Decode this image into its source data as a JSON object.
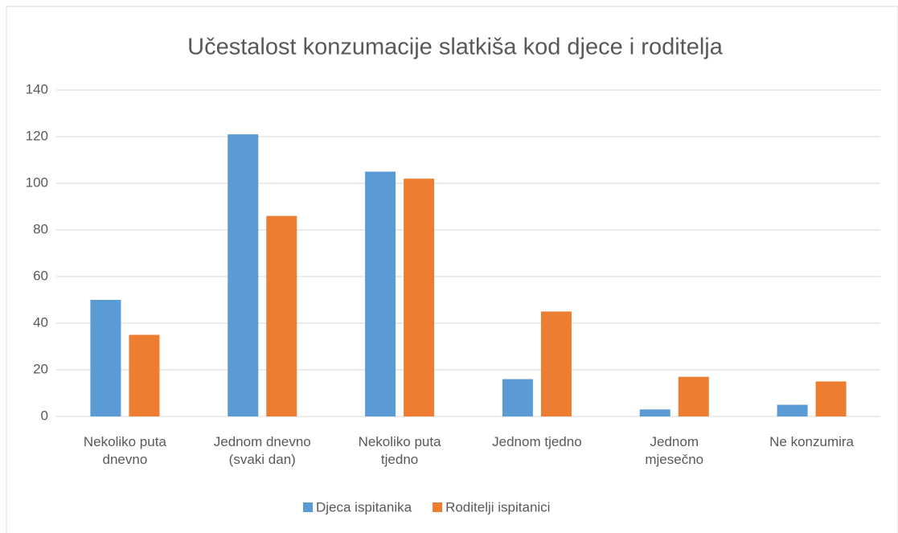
{
  "chart_data": {
    "type": "bar",
    "title": "Učestalost konzumacije slatkiša kod djece i roditelja",
    "categories": [
      "Nekoliko puta dnevno",
      "Jednom dnevno (svaki dan)",
      "Nekoliko puta tjedno",
      "Jednom tjedno",
      "Jednom mjesečno",
      "Ne konzumira"
    ],
    "series": [
      {
        "name": "Djeca ispitanika",
        "color": "#5b9bd5",
        "values": [
          50,
          121,
          105,
          16,
          3,
          5
        ]
      },
      {
        "name": "Roditelji ispitanici",
        "color": "#ed7d31",
        "values": [
          35,
          86,
          102,
          45,
          17,
          15
        ]
      }
    ],
    "ylim": [
      0,
      140
    ],
    "yticks": [
      0,
      20,
      40,
      60,
      80,
      100,
      120,
      140
    ],
    "grid": true,
    "legend": "bottom"
  }
}
